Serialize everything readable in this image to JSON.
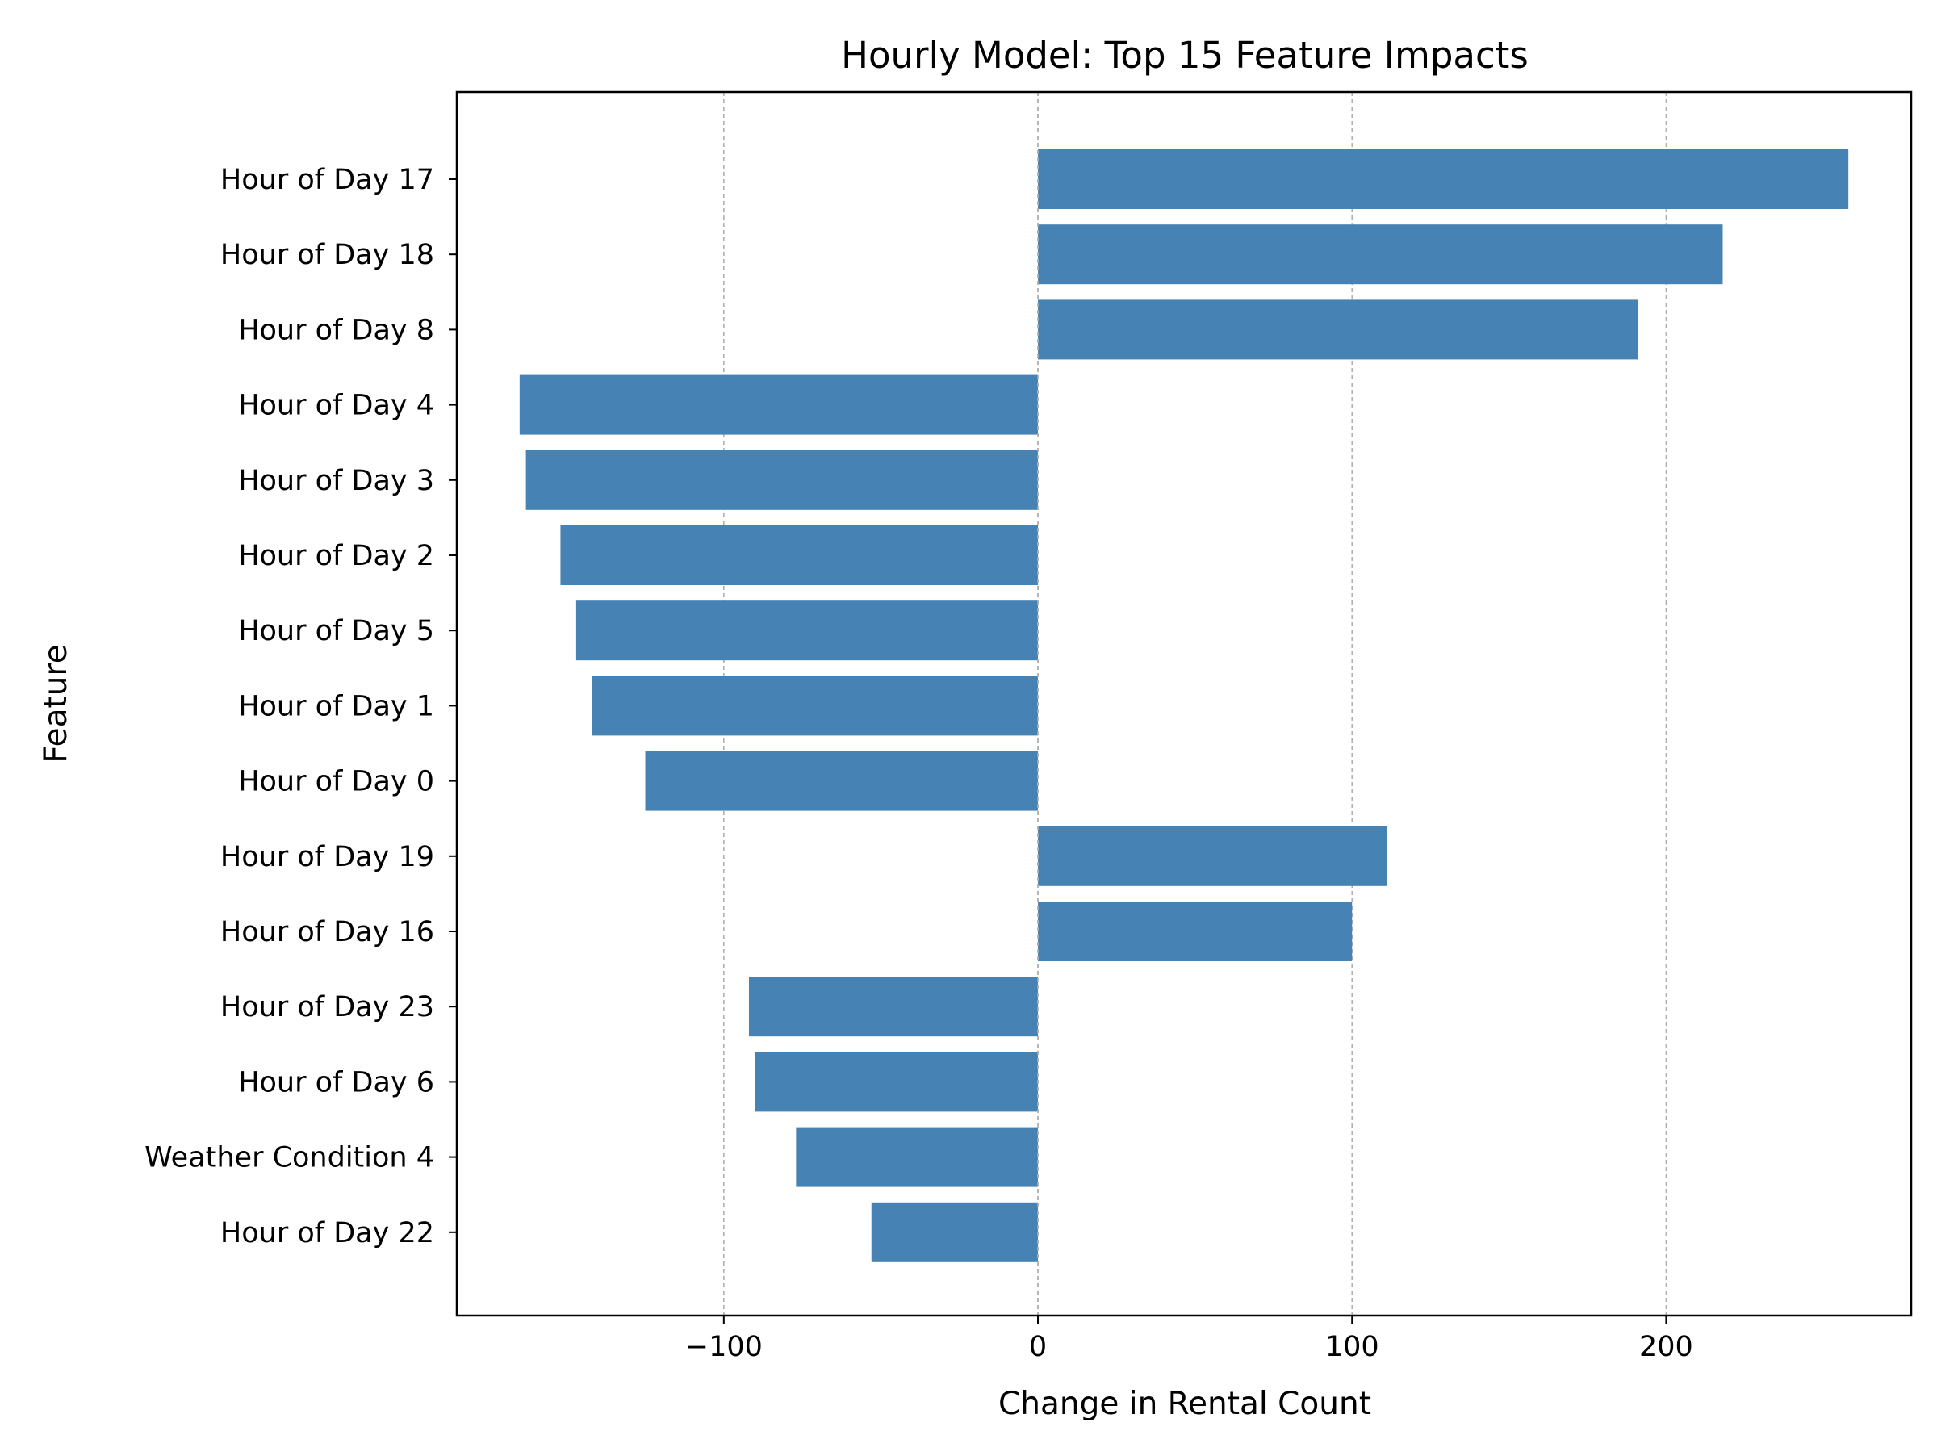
{
  "chart_data": {
    "type": "bar",
    "orientation": "horizontal",
    "title": "Hourly Model: Top 15 Feature Impacts",
    "xlabel": "Change in Rental Count",
    "ylabel": "Feature",
    "categories": [
      "Hour of Day 17",
      "Hour of Day 18",
      "Hour of Day 8",
      "Hour of Day 4",
      "Hour of Day 3",
      "Hour of Day 2",
      "Hour of Day 5",
      "Hour of Day 1",
      "Hour of Day 0",
      "Hour of Day 19",
      "Hour of Day 16",
      "Hour of Day 23",
      "Hour of Day 6",
      "Weather Condition 4",
      "Hour of Day 22"
    ],
    "values": [
      258,
      218,
      191,
      -165,
      -163,
      -152,
      -147,
      -142,
      -125,
      111,
      100,
      -92,
      -90,
      -77,
      -53
    ],
    "xlim": [
      -185,
      278
    ],
    "xticks": [
      -100,
      0,
      100,
      200
    ],
    "xtick_labels": [
      "−100",
      "0",
      "100",
      "200"
    ],
    "grid": "x, dashed",
    "bar_color": "#4682b4"
  }
}
